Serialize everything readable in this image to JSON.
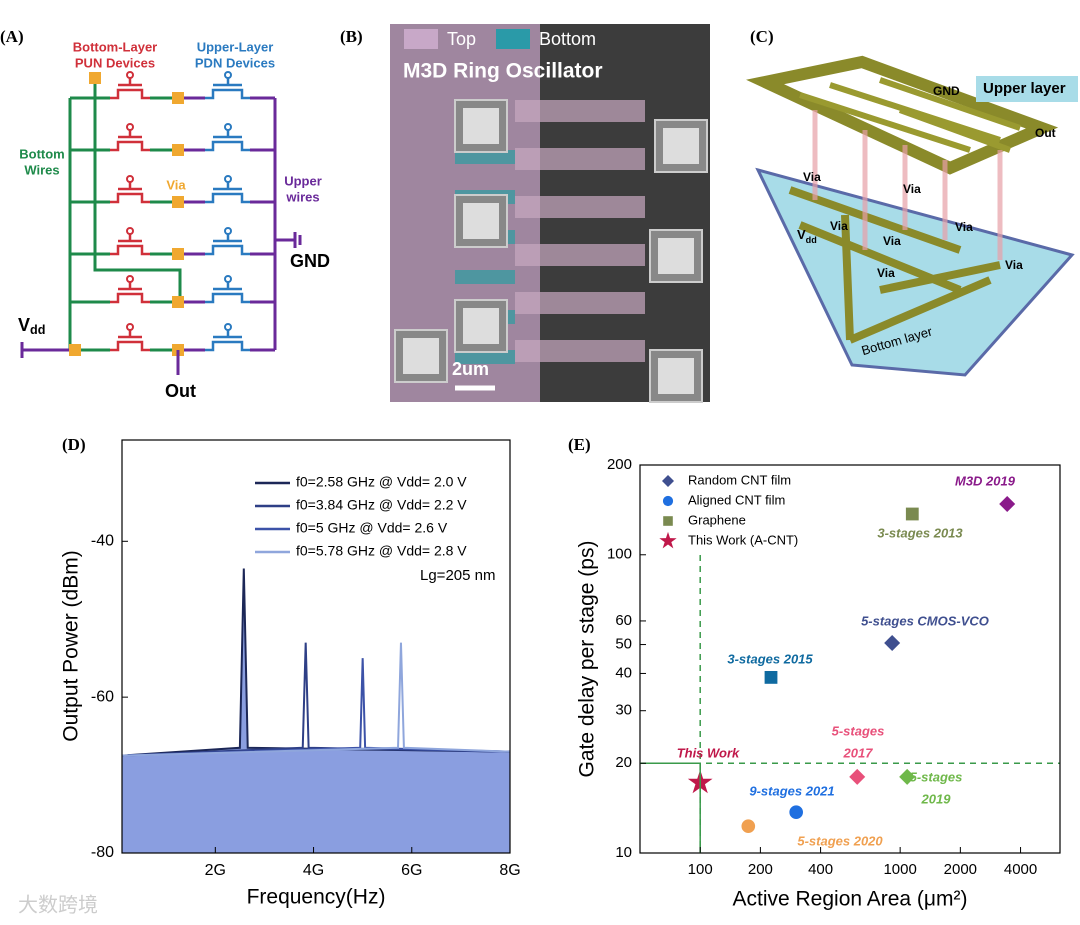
{
  "panels": {
    "a": {
      "label": "(A)",
      "bottom_layer": [
        "Bottom-Layer",
        "PUN Devices"
      ],
      "upper_layer": [
        "Upper-Layer",
        "PDN Devices"
      ],
      "bottom_wires": [
        "Bottom",
        "Wires"
      ],
      "via": "Via",
      "upper_wires": [
        "Upper",
        "wires"
      ],
      "gnd": "GND",
      "vdd": [
        "V",
        "dd"
      ],
      "out": "Out"
    },
    "b": {
      "label": "(B)",
      "top": "Top",
      "bottom": "Bottom",
      "title": "M3D Ring Oscillator",
      "scale": "2um"
    },
    "c": {
      "label": "(C)",
      "upper_layer": "Upper layer",
      "gnd": "GND",
      "out": "Out",
      "vias": [
        "Via",
        "Via",
        "Via",
        "Via",
        "Via",
        "Via"
      ],
      "vdd": [
        "V",
        "dd"
      ],
      "bottom_layer": "Bottom layer"
    },
    "d": {
      "label": "(D)"
    },
    "e": {
      "label": "(E)"
    }
  },
  "watermark": "大数跨境",
  "chart_data": [
    {
      "type": "line",
      "xlabel": "Frequency(Hz)",
      "ylabel": "Output Power (dBm)",
      "annotation": "Lg=205 nm",
      "xlim": [
        0.1,
        8
      ],
      "ylim": [
        -80,
        -27
      ],
      "xticks": [
        {
          "value": 2,
          "label": "2G"
        },
        {
          "value": 4,
          "label": "4G"
        },
        {
          "value": 6,
          "label": "6G"
        },
        {
          "value": 8,
          "label": "8G"
        }
      ],
      "yticks": [
        -40,
        -60,
        -80
      ],
      "fill_color": "#8a9ee0",
      "series": [
        {
          "name": "f0=2.58 GHz @ Vdd= 2.0 V",
          "color": "#1c2757",
          "x": [
            0.1,
            2.5,
            2.58,
            2.66,
            8
          ],
          "values": [
            -67.5,
            -66.5,
            -43.5,
            -66.5,
            -67
          ]
        },
        {
          "name": "f0=3.84 GHz @ Vdd= 2.2 V",
          "color": "#2e3f86",
          "x": [
            0.1,
            3.78,
            3.84,
            3.9,
            8
          ],
          "values": [
            -67.5,
            -66.5,
            -53,
            -66.5,
            -67
          ]
        },
        {
          "name": "f0=5 GHz      @ Vdd= 2.6 V",
          "color": "#3c52a8",
          "x": [
            0.1,
            4.95,
            5,
            5.05,
            8
          ],
          "values": [
            -67.5,
            -66.5,
            -55,
            -66.5,
            -67
          ]
        },
        {
          "name": "f0=5.78 GHz @ Vdd= 2.8 V",
          "color": "#8fa6dc",
          "x": [
            0.1,
            5.72,
            5.78,
            5.84,
            8
          ],
          "values": [
            -67.5,
            -66.5,
            -53,
            -66.5,
            -67
          ]
        }
      ]
    },
    {
      "type": "scatter",
      "xlabel": "Active Region Area (μm²)",
      "ylabel": "Gate delay per stage (ps)",
      "log_x": true,
      "log_y": true,
      "xlim": [
        50,
        6300
      ],
      "ylim": [
        10,
        200
      ],
      "xticks": [
        100,
        200,
        400,
        1000,
        2000,
        4000
      ],
      "yticks": [
        10,
        20,
        30,
        40,
        50,
        60,
        100,
        200
      ],
      "ref_x": 100,
      "ref_y": 20,
      "ref_color": "#3a9a4a",
      "series": [
        {
          "name": "Random CNT film",
          "marker": "diamond",
          "color": "#3f4f8f",
          "x": [
            912,
            3430,
            610,
            1084
          ],
          "values": [
            50.6,
            148,
            18,
            18
          ],
          "point_colors": [
            "#3f4f8f",
            "#8a1a8a",
            "#e8507a",
            "#6fb84a"
          ],
          "labels": [
            [
              "5-stages CMOS-VCO"
            ],
            [
              "M3D 2019"
            ],
            [
              "5-stages",
              "2017"
            ],
            [
              "5-stages",
              "2019"
            ]
          ]
        },
        {
          "name": "Aligned CNT film",
          "marker": "circle",
          "color": "#1f6fe0",
          "x": [
            302,
            174
          ],
          "values": [
            13.7,
            12.3
          ],
          "point_colors": [
            "#1f6fe0",
            "#f0a050"
          ],
          "labels": [
            [
              "9-stages 2021"
            ],
            [
              "5-stages 2020"
            ]
          ]
        },
        {
          "name": "Graphene",
          "marker": "square",
          "color": "#7a8a50",
          "x": [
            1150,
            226
          ],
          "values": [
            137,
            38.8
          ],
          "point_colors": [
            "#7a8a50",
            "#0f6aa0"
          ],
          "labels": [
            [
              "3-stages 2013"
            ],
            [
              "3-stages 2015"
            ]
          ]
        },
        {
          "name": "This Work (A-CNT)",
          "marker": "star",
          "color": "#c0184a",
          "x": [
            100
          ],
          "values": [
            17.2
          ],
          "point_colors": [
            "#c0184a"
          ],
          "labels": [
            [
              "This Work"
            ]
          ]
        }
      ]
    }
  ]
}
